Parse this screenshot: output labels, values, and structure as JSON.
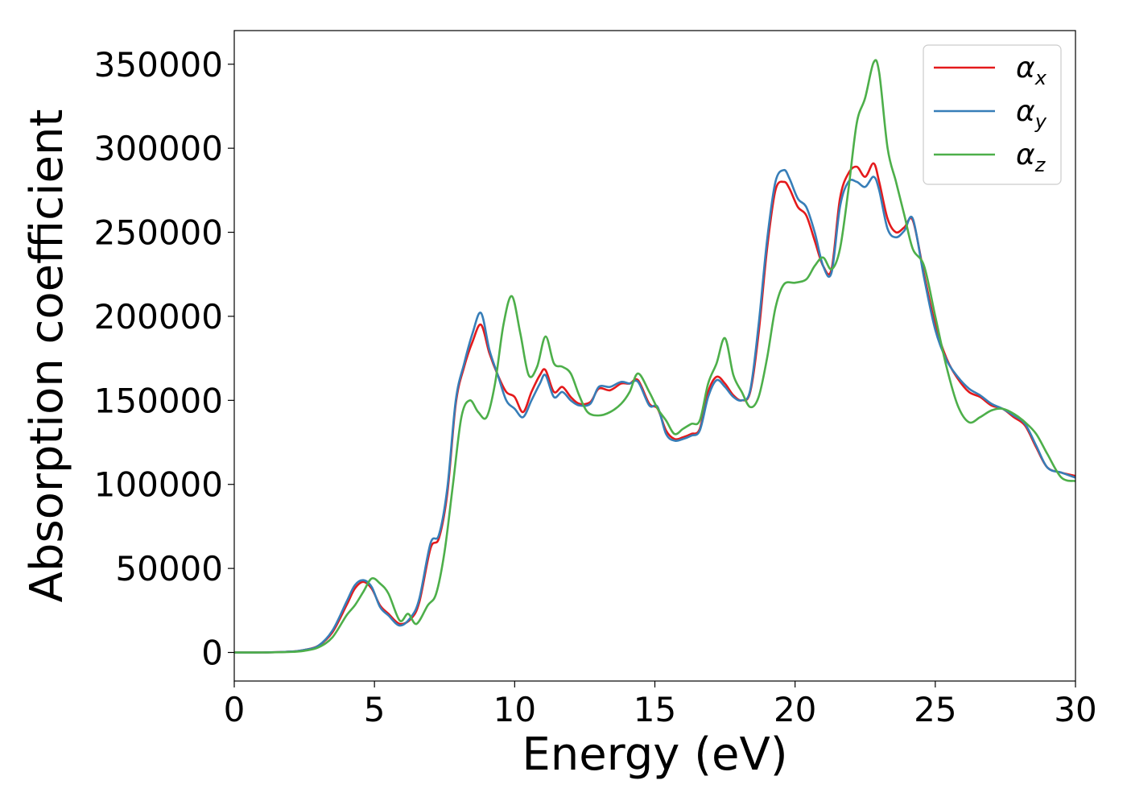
{
  "chart_data": {
    "type": "line",
    "title": "",
    "xlabel": "Energy (eV)",
    "ylabel": "Absorption coefficient",
    "xlim": [
      0,
      30
    ],
    "ylim": [
      -17000,
      370000
    ],
    "xticks": [
      0,
      5,
      10,
      15,
      20,
      25,
      30
    ],
    "xtick_labels": [
      "0",
      "5",
      "10",
      "15",
      "20",
      "25",
      "30"
    ],
    "yticks": [
      0,
      50000,
      100000,
      150000,
      200000,
      250000,
      300000,
      350000
    ],
    "ytick_labels": [
      "0",
      "50000",
      "100000",
      "150000",
      "200000",
      "250000",
      "300000",
      "350000"
    ],
    "grid": false,
    "legend_position": "top-right",
    "series": [
      {
        "name": "α",
        "subscript": "x",
        "color": "#e41a1c",
        "x": [
          0,
          1,
          2,
          2.5,
          3,
          3.5,
          4,
          4.3,
          4.6,
          4.9,
          5.2,
          5.5,
          5.9,
          6.3,
          6.6,
          7.0,
          7.3,
          7.6,
          7.9,
          8.2,
          8.5,
          8.8,
          9.1,
          9.4,
          9.7,
          10.0,
          10.3,
          10.6,
          10.9,
          11.1,
          11.4,
          11.7,
          12.0,
          12.3,
          12.7,
          13.0,
          13.4,
          13.8,
          14.1,
          14.4,
          14.8,
          15.1,
          15.4,
          15.7,
          16.0,
          16.3,
          16.6,
          16.9,
          17.2,
          17.5,
          17.8,
          18.1,
          18.4,
          18.7,
          19.0,
          19.3,
          19.6,
          19.8,
          20.1,
          20.4,
          20.7,
          21.0,
          21.3,
          21.6,
          21.9,
          22.2,
          22.5,
          22.8,
          23.0,
          23.3,
          23.6,
          23.9,
          24.2,
          24.6,
          25.0,
          25.4,
          25.8,
          26.2,
          26.6,
          27.0,
          27.4,
          27.8,
          28.2,
          28.6,
          29.0,
          29.5,
          30.0
        ],
        "y": [
          0,
          0,
          500,
          1500,
          4000,
          12000,
          28000,
          38000,
          42000,
          38000,
          28000,
          23000,
          17000,
          20000,
          30000,
          62000,
          68000,
          95000,
          148000,
          170000,
          185000,
          195000,
          178000,
          165000,
          155000,
          152000,
          143000,
          155000,
          165000,
          168000,
          155000,
          158000,
          152000,
          148000,
          149000,
          157000,
          156000,
          160000,
          160000,
          162000,
          148000,
          145000,
          132000,
          127000,
          128000,
          130000,
          133000,
          155000,
          164000,
          160000,
          153000,
          150000,
          155000,
          190000,
          240000,
          275000,
          280000,
          276000,
          265000,
          260000,
          245000,
          230000,
          228000,
          270000,
          285000,
          289000,
          283000,
          291000,
          280000,
          258000,
          250000,
          253000,
          257000,
          225000,
          195000,
          175000,
          163000,
          155000,
          152000,
          147000,
          145000,
          140000,
          135000,
          122000,
          110000,
          107000,
          105000
        ]
      },
      {
        "name": "α",
        "subscript": "y",
        "color": "#377eb8",
        "x": [
          0,
          1,
          2,
          2.5,
          3,
          3.5,
          4,
          4.3,
          4.6,
          4.9,
          5.2,
          5.5,
          5.9,
          6.3,
          6.6,
          7.0,
          7.3,
          7.6,
          7.9,
          8.2,
          8.5,
          8.8,
          9.1,
          9.4,
          9.7,
          10.0,
          10.3,
          10.6,
          10.9,
          11.1,
          11.4,
          11.7,
          12.0,
          12.3,
          12.7,
          13.0,
          13.4,
          13.8,
          14.1,
          14.4,
          14.8,
          15.1,
          15.4,
          15.7,
          16.0,
          16.3,
          16.6,
          16.9,
          17.2,
          17.5,
          17.8,
          18.1,
          18.4,
          18.7,
          19.0,
          19.3,
          19.6,
          19.8,
          20.1,
          20.4,
          20.7,
          21.0,
          21.3,
          21.6,
          21.9,
          22.2,
          22.5,
          22.8,
          23.0,
          23.3,
          23.6,
          23.9,
          24.2,
          24.6,
          25.0,
          25.4,
          25.8,
          26.2,
          26.6,
          27.0,
          27.4,
          27.8,
          28.2,
          28.6,
          29.0,
          29.5,
          30.0
        ],
        "y": [
          0,
          0,
          500,
          1500,
          4000,
          13000,
          30000,
          40000,
          43000,
          39000,
          27000,
          22000,
          16000,
          21000,
          32000,
          65000,
          70000,
          98000,
          150000,
          172000,
          190000,
          202000,
          180000,
          165000,
          150000,
          145000,
          140000,
          150000,
          160000,
          165000,
          152000,
          155000,
          150000,
          147000,
          148000,
          158000,
          158000,
          161000,
          160000,
          161000,
          147000,
          146000,
          130000,
          126000,
          127000,
          129000,
          132000,
          152000,
          162000,
          158000,
          152000,
          150000,
          156000,
          195000,
          245000,
          280000,
          287000,
          282000,
          270000,
          265000,
          250000,
          230000,
          226000,
          265000,
          280000,
          280000,
          277000,
          283000,
          275000,
          252000,
          247000,
          251000,
          258000,
          223000,
          192000,
          174000,
          164000,
          157000,
          153000,
          148000,
          145000,
          141000,
          136000,
          123000,
          110000,
          107000,
          104000
        ]
      },
      {
        "name": "α",
        "subscript": "z",
        "color": "#4daf4a",
        "x": [
          0,
          1,
          2,
          2.5,
          3,
          3.5,
          4,
          4.3,
          4.6,
          4.9,
          5.2,
          5.5,
          5.9,
          6.2,
          6.5,
          6.9,
          7.2,
          7.5,
          7.8,
          8.1,
          8.4,
          8.7,
          9.0,
          9.3,
          9.6,
          9.9,
          10.2,
          10.5,
          10.8,
          11.1,
          11.4,
          11.7,
          12.0,
          12.3,
          12.6,
          13.0,
          13.4,
          13.8,
          14.1,
          14.4,
          14.8,
          15.1,
          15.4,
          15.7,
          16.0,
          16.3,
          16.6,
          16.9,
          17.2,
          17.5,
          17.8,
          18.1,
          18.4,
          18.7,
          19.0,
          19.3,
          19.6,
          20.0,
          20.4,
          20.7,
          21.0,
          21.3,
          21.6,
          21.9,
          22.2,
          22.5,
          22.8,
          23.0,
          23.3,
          23.6,
          23.9,
          24.2,
          24.6,
          25.0,
          25.4,
          25.8,
          26.2,
          26.6,
          27.0,
          27.4,
          27.8,
          28.2,
          28.6,
          29.0,
          29.5,
          30.0
        ],
        "y": [
          0,
          0,
          300,
          1000,
          3000,
          9000,
          22000,
          28000,
          36000,
          44000,
          41000,
          35000,
          19000,
          23000,
          17000,
          28000,
          35000,
          60000,
          100000,
          140000,
          150000,
          143000,
          140000,
          160000,
          195000,
          212000,
          190000,
          165000,
          170000,
          188000,
          172000,
          170000,
          166000,
          153000,
          143000,
          141000,
          143000,
          148000,
          155000,
          166000,
          155000,
          145000,
          138000,
          130000,
          133000,
          136000,
          138000,
          160000,
          172000,
          187000,
          165000,
          155000,
          146000,
          152000,
          175000,
          205000,
          219000,
          220000,
          222000,
          230000,
          235000,
          228000,
          240000,
          275000,
          315000,
          330000,
          351000,
          345000,
          300000,
          280000,
          260000,
          240000,
          230000,
          200000,
          170000,
          147000,
          137000,
          140000,
          144000,
          145000,
          142000,
          137000,
          130000,
          118000,
          104000,
          102000
        ]
      }
    ]
  }
}
